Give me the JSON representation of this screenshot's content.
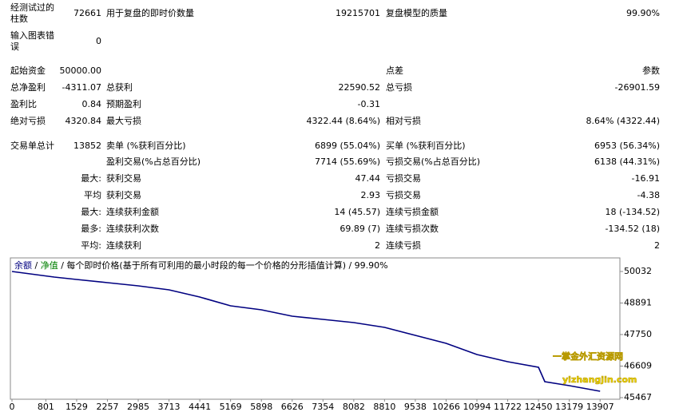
{
  "report": {
    "rows": [
      [
        "经测试过的柱数",
        "72661",
        "用于复盘的即时价数量",
        "19215701",
        "复盘模型的质量",
        "99.90%"
      ],
      [
        "输入图表错误",
        "0",
        null,
        null,
        null,
        null
      ],
      [
        "起始资金",
        "50000.00",
        null,
        null,
        "点差",
        "参数"
      ],
      [
        "总净盈利",
        "-4311.07",
        "总获利",
        "22590.52",
        "总亏损",
        "-26901.59"
      ],
      [
        "盈利比",
        "0.84",
        "预期盈利",
        "-0.31",
        null,
        null
      ],
      [
        "绝对亏损",
        "4320.84",
        "最大亏损",
        "4322.44 (8.64%)",
        "相对亏损",
        "8.64% (4322.44)"
      ],
      [
        "交易单总计",
        "13852",
        "卖单 (%获利百分比)",
        "6899 (55.04%)",
        "买单 (%获利百分比)",
        "6953 (56.34%)"
      ],
      [
        null,
        null,
        "盈利交易(%占总百分比)",
        "7714 (55.69%)",
        "亏损交易(%占总百分比)",
        "6138 (44.31%)"
      ],
      [
        null,
        "最大:",
        "获利交易",
        "47.44",
        "亏损交易",
        "-16.91"
      ],
      [
        null,
        "平均",
        "获利交易",
        "2.93",
        "亏损交易",
        "-4.38"
      ],
      [
        null,
        "最大:",
        "连续获利金额",
        "14 (45.57)",
        "连续亏损金额",
        "18 (-134.52)"
      ],
      [
        null,
        "最多:",
        "连续获利次数",
        "69.89 (7)",
        "连续亏损次数",
        "-134.52 (18)"
      ],
      [
        null,
        "平均:",
        "连续获利",
        "2",
        "连续亏损",
        "2"
      ]
    ]
  },
  "chart_data": {
    "type": "line",
    "legend_separator": " / ",
    "equity_label": "净值",
    "equity_color": "#008000",
    "description": "每个即时价格(基于所有可利用的最小时段的每一个价格的分形插值计算) / 99.90%",
    "x": [
      0,
      1000,
      1529,
      2257,
      2985,
      3713,
      4441,
      5169,
      5898,
      6626,
      7354,
      8082,
      8810,
      9538,
      10266,
      10994,
      11722,
      12450,
      12600,
      13179,
      13907
    ],
    "series": [
      {
        "name": "余额",
        "color": "#000080",
        "values": [
          50032,
          49830,
          49743,
          49627,
          49512,
          49367,
          49107,
          48790,
          48645,
          48413,
          48298,
          48182,
          48009,
          47720,
          47431,
          47026,
          46766,
          46564,
          46044,
          45900,
          45698
        ]
      }
    ],
    "xlim": [
      0,
      14300
    ],
    "xticks": [
      0,
      801,
      1529,
      2257,
      2985,
      3713,
      4441,
      5169,
      5898,
      6626,
      7354,
      8082,
      8810,
      9538,
      10266,
      10994,
      11722,
      12450,
      13179,
      13907
    ],
    "ylim": [
      45409,
      50523
    ],
    "yticks": [
      50032,
      48891,
      47750,
      46609,
      45467
    ],
    "watermark": [
      "一掌金外汇资源网",
      "yizhangjin.com"
    ]
  }
}
